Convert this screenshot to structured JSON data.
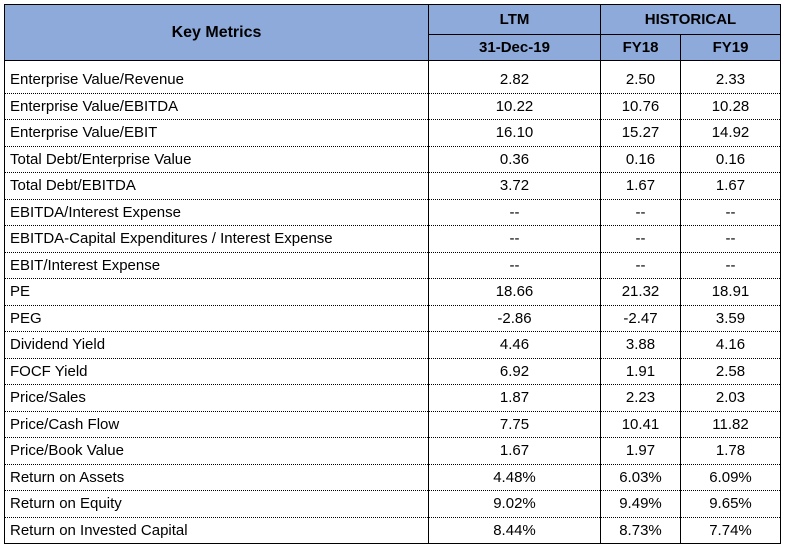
{
  "header": {
    "title": "Key Metrics",
    "ltm_label": "LTM",
    "historical_label": "HISTORICAL",
    "ltm_date": "31-Dec-19",
    "fy18": "FY18",
    "fy19": "FY19"
  },
  "rows": [
    {
      "metric": "Enterprise Value/Revenue",
      "ltm": "2.82",
      "fy18": "2.50",
      "fy19": "2.33"
    },
    {
      "metric": "Enterprise Value/EBITDA",
      "ltm": "10.22",
      "fy18": "10.76",
      "fy19": "10.28"
    },
    {
      "metric": "Enterprise Value/EBIT",
      "ltm": "16.10",
      "fy18": "15.27",
      "fy19": "14.92"
    },
    {
      "metric": "Total Debt/Enterprise Value",
      "ltm": "0.36",
      "fy18": "0.16",
      "fy19": "0.16"
    },
    {
      "metric": "Total Debt/EBITDA",
      "ltm": "3.72",
      "fy18": "1.67",
      "fy19": "1.67"
    },
    {
      "metric": "EBITDA/Interest Expense",
      "ltm": "--",
      "fy18": "--",
      "fy19": "--"
    },
    {
      "metric": "EBITDA-Capital Expenditures / Interest Expense",
      "ltm": "--",
      "fy18": "--",
      "fy19": "--"
    },
    {
      "metric": "EBIT/Interest Expense",
      "ltm": "--",
      "fy18": "--",
      "fy19": "--"
    },
    {
      "metric": "PE",
      "ltm": "18.66",
      "fy18": "21.32",
      "fy19": "18.91"
    },
    {
      "metric": "PEG",
      "ltm": "-2.86",
      "fy18": "-2.47",
      "fy19": "3.59"
    },
    {
      "metric": "Dividend Yield",
      "ltm": "4.46",
      "fy18": "3.88",
      "fy19": "4.16"
    },
    {
      "metric": "FOCF Yield",
      "ltm": "6.92",
      "fy18": "1.91",
      "fy19": "2.58"
    },
    {
      "metric": "Price/Sales",
      "ltm": "1.87",
      "fy18": "2.23",
      "fy19": "2.03"
    },
    {
      "metric": "Price/Cash Flow",
      "ltm": "7.75",
      "fy18": "10.41",
      "fy19": "11.82"
    },
    {
      "metric": "Price/Book Value",
      "ltm": "1.67",
      "fy18": "1.97",
      "fy19": "1.78"
    },
    {
      "metric": "Return on Assets",
      "ltm": "4.48%",
      "fy18": "6.03%",
      "fy19": "6.09%"
    },
    {
      "metric": "Return on Equity",
      "ltm": "9.02%",
      "fy18": "9.49%",
      "fy19": "9.65%"
    },
    {
      "metric": "Return on Invested Capital",
      "ltm": "8.44%",
      "fy18": "8.73%",
      "fy19": "7.74%"
    }
  ],
  "colors": {
    "header_bg": "#8eaadb",
    "text": "#000000",
    "grid": "#000000"
  }
}
